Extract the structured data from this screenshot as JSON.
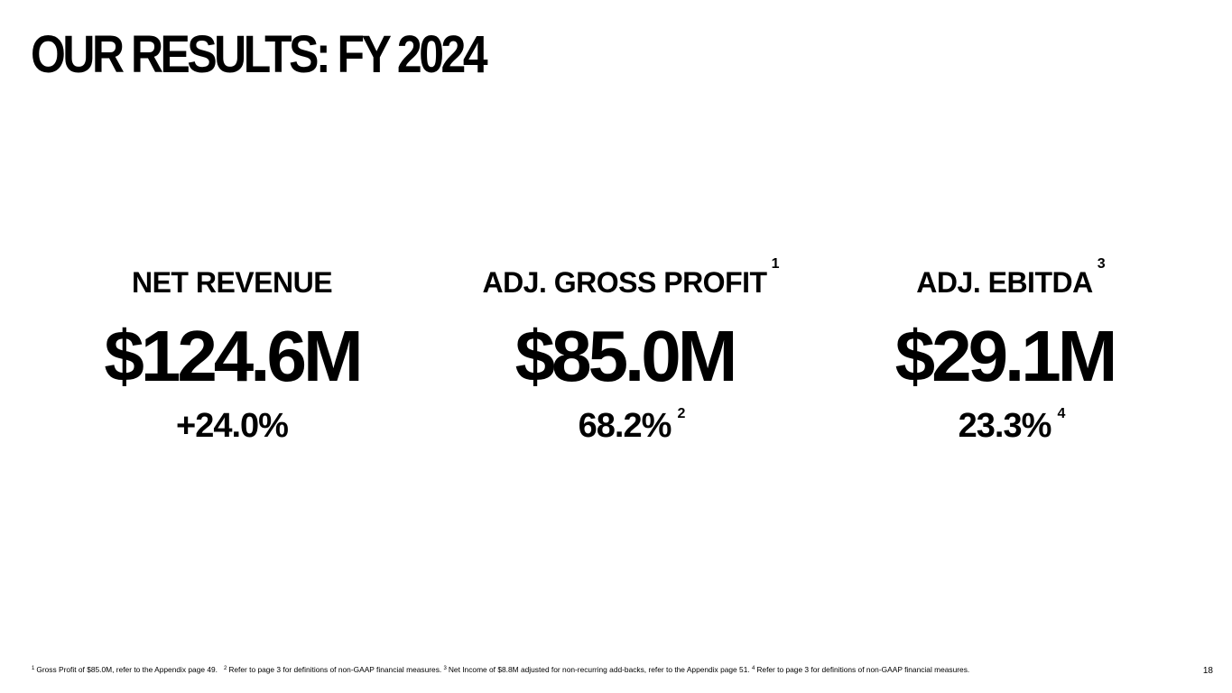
{
  "slide": {
    "title": "OUR RESULTS: FY 2024",
    "page_number": "18"
  },
  "metrics": [
    {
      "label": "NET REVENUE",
      "label_ref": "",
      "value": "$124.6M",
      "sub": "+24.0%",
      "sub_ref": ""
    },
    {
      "label": "ADJ. GROSS PROFIT",
      "label_ref": "1",
      "value": "$85.0M",
      "sub": "68.2%",
      "sub_ref": "2"
    },
    {
      "label": "ADJ. EBITDA",
      "label_ref": "3",
      "value": "$29.1M",
      "sub": "23.3%",
      "sub_ref": "4"
    }
  ],
  "footnotes": [
    {
      "ref": "1",
      "text": "Gross Profit of $85.0M, refer to the Appendix page 49."
    },
    {
      "ref": "2",
      "text": "Refer to page 3 for definitions of non-GAAP financial measures."
    },
    {
      "ref": "3",
      "text": "Net Income of $8.8M adjusted for non-recurring add-backs, refer to the Appendix page 51."
    },
    {
      "ref": "4",
      "text": "Refer to page 3 for definitions of non-GAAP financial measures."
    }
  ]
}
